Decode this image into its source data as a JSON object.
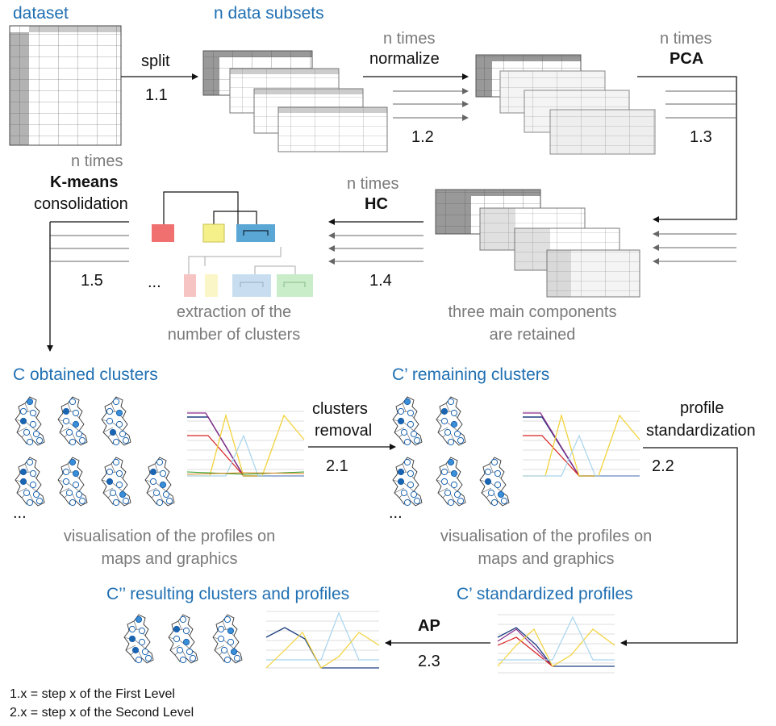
{
  "labels": {
    "dataset": "dataset",
    "n_subsets": "n data subsets",
    "n_times": "n times",
    "split": "split",
    "step_1_1": "1.1",
    "normalize": "normalize",
    "step_1_2": "1.2",
    "pca": "PCA",
    "step_1_3": "1.3",
    "kmeans": "K-means",
    "consolidation": "consolidation",
    "step_1_5": "1.5",
    "hc": "HC",
    "step_1_4": "1.4",
    "ellipsis": "...",
    "extraction_line1": "extraction of the",
    "extraction_line2": "number of clusters",
    "three_components_line1": "three main components",
    "three_components_line2": "are retained",
    "c_obtained": "C obtained clusters",
    "c_prime_remaining": "C’ remaining clusters",
    "clusters": "clusters",
    "removal": "removal",
    "step_2_1": "2.1",
    "profile": "profile",
    "standardization": "standardization",
    "step_2_2": "2.2",
    "visualisation_line1": "visualisation of the profiles on",
    "visualisation_line2": "maps and graphics",
    "c_double_prime": "C’’ resulting clusters and profiles",
    "c_prime_standardized": "C’ standardized profiles",
    "ap": "AP",
    "step_2_3": "2.3",
    "legend_1x": "1.x = step x of the First Level",
    "legend_2x": "2.x = step x of the Second Level"
  },
  "colors": {
    "title_blue": "#1f6fb2",
    "gray_text": "#7a7a7a",
    "cluster_red": "#f07070",
    "cluster_yellow": "#f5f08a",
    "cluster_blue": "#5aa7d6",
    "cluster_green": "#a7dfae",
    "map_blue_dark": "#1b64b0",
    "map_blue_light": "#3a8fd8"
  }
}
